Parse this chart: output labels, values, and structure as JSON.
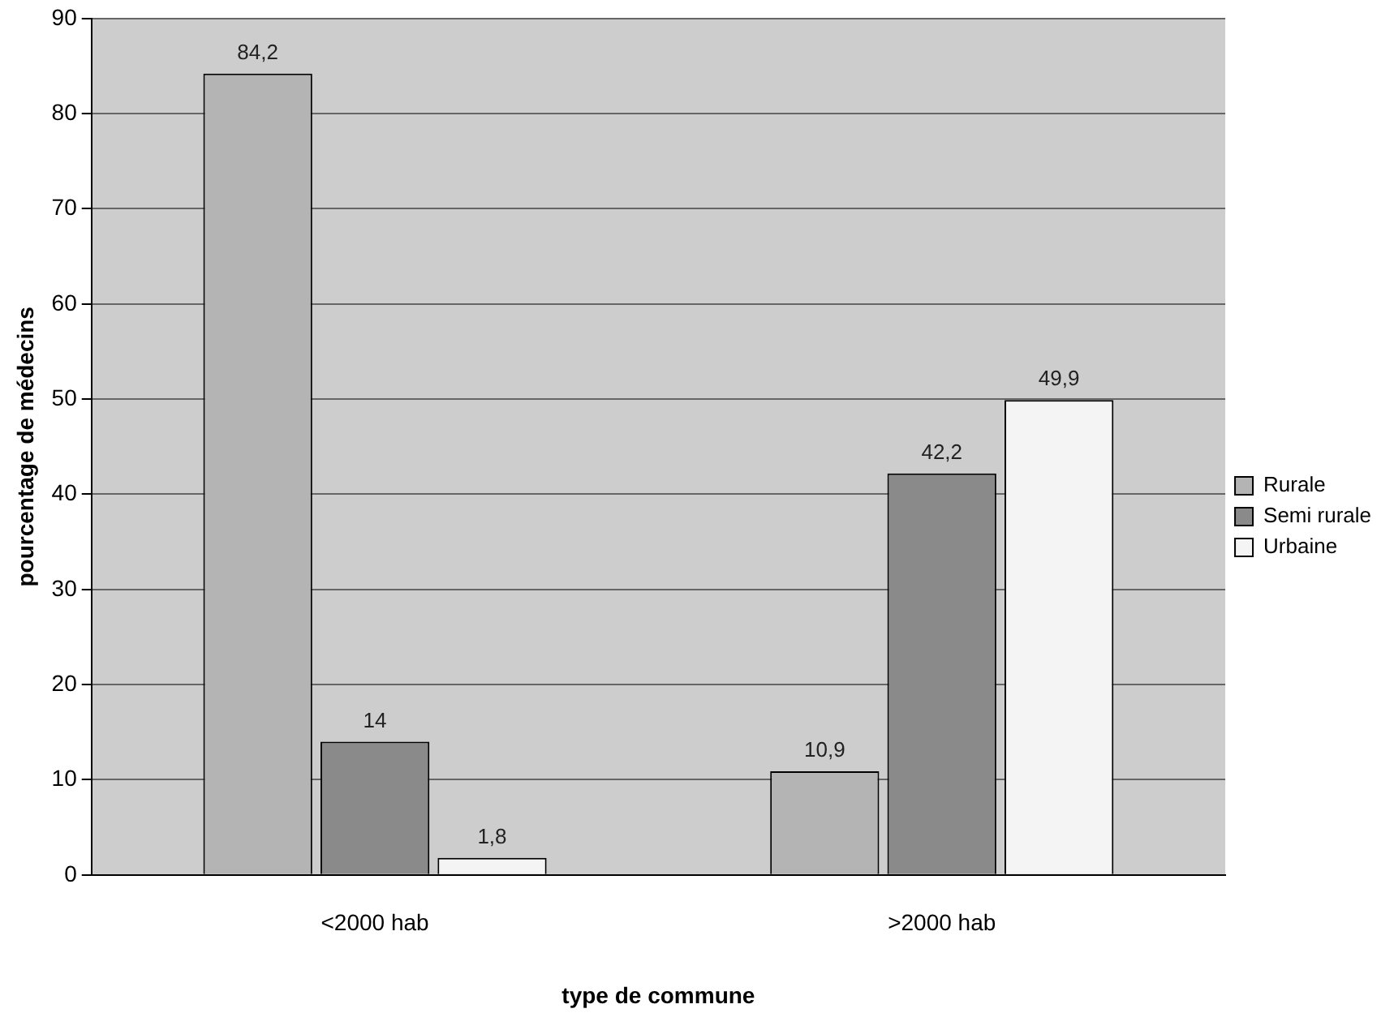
{
  "chart_data": {
    "type": "bar",
    "xlabel": "type de commune",
    "ylabel": "pourcentage de médecins",
    "categories": [
      "<2000 hab",
      ">2000 hab"
    ],
    "series": [
      {
        "name": "Rurale",
        "color": "#b4b4b4",
        "values": [
          84.2,
          10.9
        ],
        "value_labels": [
          "84,2",
          "10,9"
        ]
      },
      {
        "name": "Semi rurale",
        "color": "#8a8a8a",
        "values": [
          14,
          42.2
        ],
        "value_labels": [
          "14",
          "42,2"
        ]
      },
      {
        "name": "Urbaine",
        "color": "#f4f4f4",
        "values": [
          1.8,
          49.9
        ],
        "value_labels": [
          "1,8",
          "49,9"
        ]
      }
    ],
    "ylim": [
      0,
      90
    ],
    "yticks": [
      0,
      10,
      20,
      30,
      40,
      50,
      60,
      70,
      80,
      90
    ],
    "grid": "y",
    "legend": "right"
  }
}
